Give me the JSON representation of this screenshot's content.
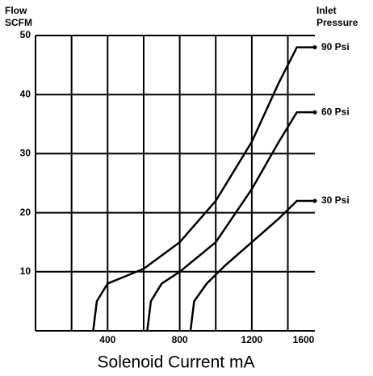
{
  "chart_data": {
    "type": "line",
    "y_label_lines": [
      "Flow",
      "SCFM"
    ],
    "legend_title_lines": [
      "Inlet",
      "Pressure"
    ],
    "x_label": "Solenoid Current mA",
    "xlim": [
      0,
      1550
    ],
    "xticks": [
      400,
      800,
      1200,
      1600
    ],
    "xgrid": [
      200,
      400,
      600,
      800,
      1000,
      1200,
      1400
    ],
    "ylim": [
      0,
      50
    ],
    "yticks": [
      10,
      20,
      30,
      40,
      50
    ],
    "grid": true,
    "color": "#000000",
    "series": [
      {
        "name": "90 Psi",
        "x": [
          320,
          340,
          400,
          600,
          800,
          1000,
          1200,
          1350,
          1450,
          1550
        ],
        "values": [
          0,
          5,
          8,
          10.5,
          15,
          22,
          32,
          42,
          48,
          48
        ]
      },
      {
        "name": "60 Psi",
        "x": [
          620,
          640,
          700,
          800,
          1000,
          1200,
          1350,
          1450,
          1550
        ],
        "values": [
          0,
          5,
          8,
          10,
          15,
          24,
          32,
          37,
          37
        ]
      },
      {
        "name": "30 Psi",
        "x": [
          860,
          880,
          950,
          1050,
          1200,
          1350,
          1450,
          1550
        ],
        "values": [
          0,
          5,
          8,
          11,
          15,
          19,
          22,
          22
        ]
      }
    ]
  }
}
